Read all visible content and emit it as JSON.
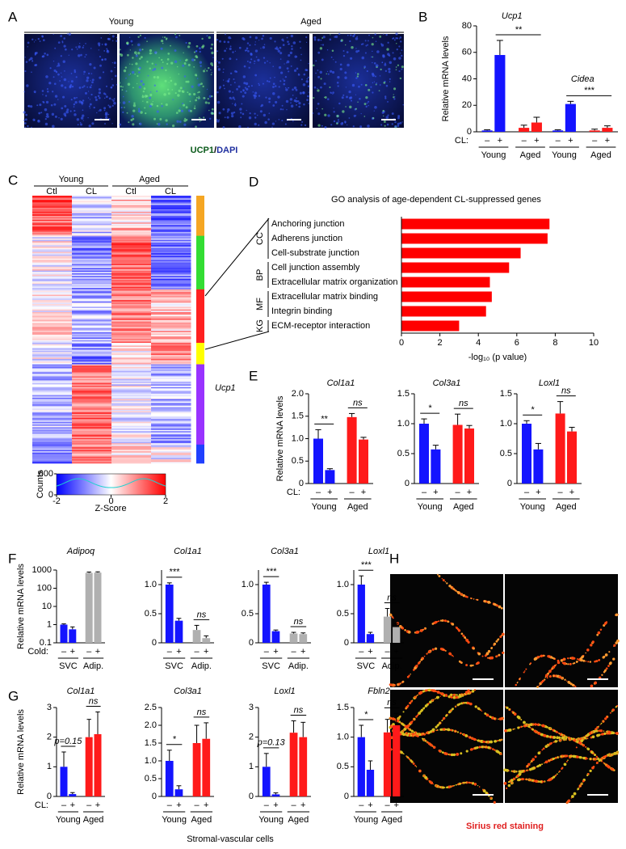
{
  "figure": {
    "panel_labels": [
      "A",
      "B",
      "C",
      "D",
      "E",
      "F",
      "G",
      "H"
    ],
    "a": {
      "groups": [
        "Young",
        "Aged"
      ],
      "stain": [
        "UCP1",
        "/",
        "DAPI"
      ]
    },
    "c": {
      "column_groups": [
        "Young",
        "Aged"
      ],
      "columns": [
        "Ctl",
        "CL",
        "Ctl",
        "CL"
      ],
      "annotation": "Ucp1",
      "key": {
        "ylabel": "Counts",
        "ylim": [
          0,
          600
        ],
        "yticks": [
          0,
          600
        ],
        "xlabel": "Z-Score",
        "xlim": [
          -2,
          2
        ],
        "xticks": [
          -2,
          0,
          2
        ]
      }
    },
    "g_xlabel": "Stromal-vascular cells",
    "h": {
      "caption": "Sirius red staining"
    }
  },
  "chart_data": [
    {
      "type": "bar",
      "ylabel": "Relative mRNA levels",
      "titles": [
        "Ucp1",
        "Cidea"
      ],
      "ylim": [
        0,
        80
      ],
      "yticks": [
        0,
        20,
        40,
        60,
        80
      ],
      "treatment_label": "CL:",
      "categories": [
        "–",
        "+",
        "–",
        "+",
        "–",
        "+",
        "–",
        "+"
      ],
      "groups": [
        "Young",
        "Aged",
        "Young",
        "Aged"
      ],
      "values": [
        1,
        58,
        3,
        7,
        1,
        21,
        1,
        3
      ],
      "errors": [
        0.5,
        11,
        2,
        4,
        0.5,
        2,
        1,
        1.5
      ],
      "colors": [
        "#1414ff",
        "#1414ff",
        "#ff1a1a",
        "#ff1a1a",
        "#1414ff",
        "#1414ff",
        "#ff1a1a",
        "#ff1a1a"
      ],
      "significance": [
        "**",
        "***"
      ]
    },
    {
      "type": "hbar",
      "title": "GO analysis of age-dependent CL-suppressed genes",
      "categories": [
        "Anchoring junction",
        "Adherens junction",
        "Cell-substrate junction",
        "Cell junction assembly",
        "Extracellular matrix organization",
        "Extracellular matrix binding",
        "Integrin binding",
        "ECM-receptor interaction"
      ],
      "group_labels": [
        "CC",
        null,
        null,
        "BP",
        null,
        "MF",
        null,
        "KG"
      ],
      "values": [
        7.7,
        7.6,
        6.2,
        5.6,
        4.6,
        4.7,
        4.4,
        3.0
      ],
      "color": "#ff0000",
      "xlim": [
        0,
        10
      ],
      "xticks": [
        0,
        2,
        4,
        6,
        8,
        10
      ],
      "xlabel": "-log₁₀ (p value)"
    },
    {
      "type": "bar",
      "ylabel": "Relative mRNA levels",
      "title": "Col1a1",
      "ylim": [
        0,
        2
      ],
      "yticks": [
        0,
        0.5,
        {
          "value": 1,
          "label": "1.0"
        },
        1.5,
        {
          "value": 2,
          "label": "2.0"
        }
      ],
      "treatment_label": "CL:",
      "categories": [
        "–",
        "+",
        "–",
        "+"
      ],
      "groups": [
        "Young",
        "Aged"
      ],
      "values": [
        1.0,
        0.3,
        1.48,
        0.98
      ],
      "errors": [
        0.2,
        0.03,
        0.08,
        0.05
      ],
      "colors": [
        "#1414ff",
        "#1414ff",
        "#ff1a1a",
        "#ff1a1a"
      ],
      "significance": [
        "**",
        "ns"
      ]
    },
    {
      "type": "bar",
      "title": "Col3a1",
      "ylim": [
        0,
        1.5
      ],
      "yticks": [
        0,
        0.5,
        {
          "value": 1,
          "label": "1.0"
        },
        1.5
      ],
      "categories": [
        "–",
        "+",
        "–",
        "+"
      ],
      "groups": [
        "Young",
        "Aged"
      ],
      "values": [
        1.0,
        0.57,
        0.98,
        0.92
      ],
      "errors": [
        0.08,
        0.07,
        0.18,
        0.05
      ],
      "colors": [
        "#1414ff",
        "#1414ff",
        "#ff1a1a",
        "#ff1a1a"
      ],
      "significance": [
        "*",
        "ns"
      ]
    },
    {
      "type": "bar",
      "title": "Loxl1",
      "ylim": [
        0,
        1.5
      ],
      "yticks": [
        0,
        0.5,
        {
          "value": 1,
          "label": "1.0"
        },
        1.5
      ],
      "categories": [
        "–",
        "+",
        "–",
        "+"
      ],
      "groups": [
        "Young",
        "Aged"
      ],
      "values": [
        1.0,
        0.57,
        1.17,
        0.87
      ],
      "errors": [
        0.05,
        0.1,
        0.2,
        0.07
      ],
      "colors": [
        "#1414ff",
        "#1414ff",
        "#ff1a1a",
        "#ff1a1a"
      ],
      "significance": [
        "*",
        "ns"
      ]
    },
    {
      "type": "bar",
      "ylabel": "Relative mRNA levels",
      "title": "Adipoq",
      "log": true,
      "ylim": [
        0.1,
        1000
      ],
      "yticks": [
        0.1,
        1,
        10,
        100,
        1000
      ],
      "treatment_label": "Cold:",
      "categories": [
        "–",
        "+",
        "–",
        "+"
      ],
      "groups": [
        "SVC",
        "Adip."
      ],
      "values": [
        1.0,
        0.55,
        700,
        720
      ],
      "errors": [
        0.1,
        0.2,
        80,
        80
      ],
      "colors": [
        "#1414ff",
        "#1414ff",
        "#b0b0b0",
        "#b0b0b0"
      ],
      "significance": []
    },
    {
      "type": "bar",
      "title": "Col1a1",
      "ylim": [
        0,
        1.25
      ],
      "yticks": [
        0,
        0.5,
        {
          "value": 1,
          "label": "1.0"
        }
      ],
      "categories": [
        "–",
        "+",
        "–",
        "+"
      ],
      "groups": [
        "SVC",
        "Adip."
      ],
      "values": [
        1.0,
        0.38,
        0.22,
        0.08
      ],
      "errors": [
        0.03,
        0.04,
        0.08,
        0.04
      ],
      "colors": [
        "#1414ff",
        "#1414ff",
        "#b0b0b0",
        "#b0b0b0"
      ],
      "significance": [
        "***",
        "ns"
      ]
    },
    {
      "type": "bar",
      "title": "Col3a1",
      "ylim": [
        0,
        1.25
      ],
      "yticks": [
        0,
        0.5,
        {
          "value": 1,
          "label": "1.0"
        }
      ],
      "categories": [
        "–",
        "+",
        "–",
        "+"
      ],
      "groups": [
        "SVC",
        "Adip."
      ],
      "values": [
        1.0,
        0.2,
        0.16,
        0.15
      ],
      "errors": [
        0.04,
        0.02,
        0.02,
        0.02
      ],
      "colors": [
        "#1414ff",
        "#1414ff",
        "#b0b0b0",
        "#b0b0b0"
      ],
      "significance": [
        "***",
        "ns"
      ]
    },
    {
      "type": "bar",
      "title": "Loxl1",
      "ylim": [
        0,
        1.25
      ],
      "yticks": [
        0,
        0.5,
        {
          "value": 1,
          "label": "1.0"
        }
      ],
      "categories": [
        "–",
        "+",
        "–",
        "+"
      ],
      "groups": [
        "SVC",
        "Adip."
      ],
      "values": [
        1.0,
        0.15,
        0.45,
        0.27
      ],
      "errors": [
        0.15,
        0.03,
        0.14,
        0.06
      ],
      "colors": [
        "#1414ff",
        "#1414ff",
        "#b0b0b0",
        "#b0b0b0"
      ],
      "significance": [
        "***",
        "ns"
      ]
    },
    {
      "type": "bar",
      "ylabel": "Relative mRNA levels",
      "title": "Col1a1",
      "ylim": [
        0,
        3
      ],
      "yticks": [
        0,
        1,
        2,
        3
      ],
      "treatment_label": "CL:",
      "categories": [
        "–",
        "+",
        "–",
        "+"
      ],
      "groups": [
        "Young",
        "Aged"
      ],
      "values": [
        1.0,
        0.08,
        2.0,
        2.1
      ],
      "errors": [
        0.5,
        0.05,
        0.6,
        0.75
      ],
      "colors": [
        "#1414ff",
        "#1414ff",
        "#ff1a1a",
        "#ff1a1a"
      ],
      "significance": [
        "p=0.15",
        "ns"
      ]
    },
    {
      "type": "bar",
      "title": "Col3a1",
      "ylim": [
        0,
        2.5
      ],
      "yticks": [
        0,
        0.5,
        {
          "value": 1,
          "label": "1.0"
        },
        1.5,
        {
          "value": 2,
          "label": "2.0"
        },
        2.5
      ],
      "categories": [
        "–",
        "+",
        "–",
        "+"
      ],
      "groups": [
        "Young",
        "Aged"
      ],
      "values": [
        1.0,
        0.2,
        1.5,
        1.62
      ],
      "errors": [
        0.3,
        0.1,
        0.5,
        0.45
      ],
      "colors": [
        "#1414ff",
        "#1414ff",
        "#ff1a1a",
        "#ff1a1a"
      ],
      "significance": [
        "*",
        "ns"
      ]
    },
    {
      "type": "bar",
      "title": "Loxl1",
      "ylim": [
        0,
        3
      ],
      "yticks": [
        0,
        1,
        2,
        3
      ],
      "categories": [
        "–",
        "+",
        "–",
        "+"
      ],
      "groups": [
        "Young",
        "Aged"
      ],
      "values": [
        1.0,
        0.07,
        2.15,
        2.0
      ],
      "errors": [
        0.45,
        0.05,
        0.4,
        0.5
      ],
      "colors": [
        "#1414ff",
        "#1414ff",
        "#ff1a1a",
        "#ff1a1a"
      ],
      "significance": [
        "p=0.13",
        "ns"
      ]
    },
    {
      "type": "bar",
      "title": "Fbln2",
      "ylim": [
        0,
        1.5
      ],
      "yticks": [
        0,
        0.5,
        {
          "value": 1,
          "label": "1.0"
        },
        1.5
      ],
      "categories": [
        "–",
        "+",
        "–",
        "+"
      ],
      "groups": [
        "Young",
        "Aged"
      ],
      "values": [
        1.0,
        0.45,
        1.08,
        1.2
      ],
      "errors": [
        0.2,
        0.15,
        0.22,
        0.2
      ],
      "colors": [
        "#1414ff",
        "#1414ff",
        "#ff1a1a",
        "#ff1a1a"
      ],
      "significance": [
        "*",
        "ns"
      ]
    }
  ]
}
